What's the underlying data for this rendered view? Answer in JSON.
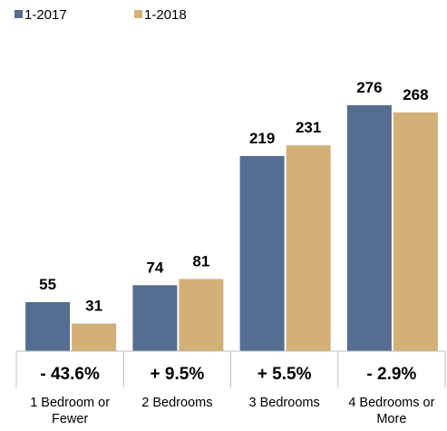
{
  "chart_data": {
    "type": "bar",
    "categories": [
      [
        "1 Bedroom or",
        "Fewer"
      ],
      [
        "2 Bedrooms"
      ],
      [
        "3 Bedrooms"
      ],
      [
        "4 Bedrooms or",
        "More"
      ]
    ],
    "series": [
      {
        "name": "1-2017",
        "values": [
          55,
          74,
          219,
          276
        ],
        "color": "#546d91"
      },
      {
        "name": "1-2018",
        "values": [
          31,
          81,
          231,
          268
        ],
        "color": "#d2b078"
      }
    ],
    "changes": [
      "- 43.6%",
      "+ 9.5%",
      "+ 5.5%",
      "- 2.9%"
    ],
    "ylim": [
      0,
      276
    ],
    "legend_position": "top-left",
    "grid": false
  }
}
